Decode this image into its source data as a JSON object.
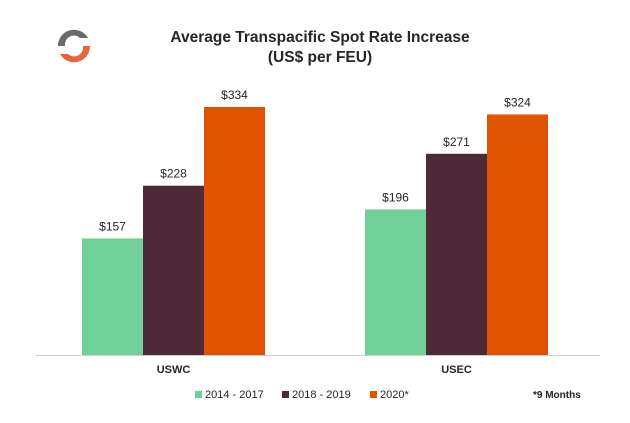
{
  "title_line1": "Average Transpacific Spot Rate Increase",
  "title_line2": "(US$ per FEU)",
  "footnote": "*9 Months",
  "chart_data": {
    "type": "bar",
    "categories": [
      "USWC",
      "USEC"
    ],
    "series": [
      {
        "name": "2014 - 2017",
        "values": [
          157,
          196
        ],
        "labels": [
          "$157",
          "$196"
        ],
        "color": "#71cf98"
      },
      {
        "name": "2018 - 2019",
        "values": [
          228,
          271
        ],
        "labels": [
          "$228",
          "$271"
        ],
        "color": "#4e2a38"
      },
      {
        "name": "2020*",
        "values": [
          334,
          324
        ],
        "labels": [
          "$334",
          "$324"
        ],
        "color": "#e05300"
      }
    ],
    "ylim": [
      0,
      340
    ],
    "grid": false,
    "legend_position": "bottom"
  }
}
